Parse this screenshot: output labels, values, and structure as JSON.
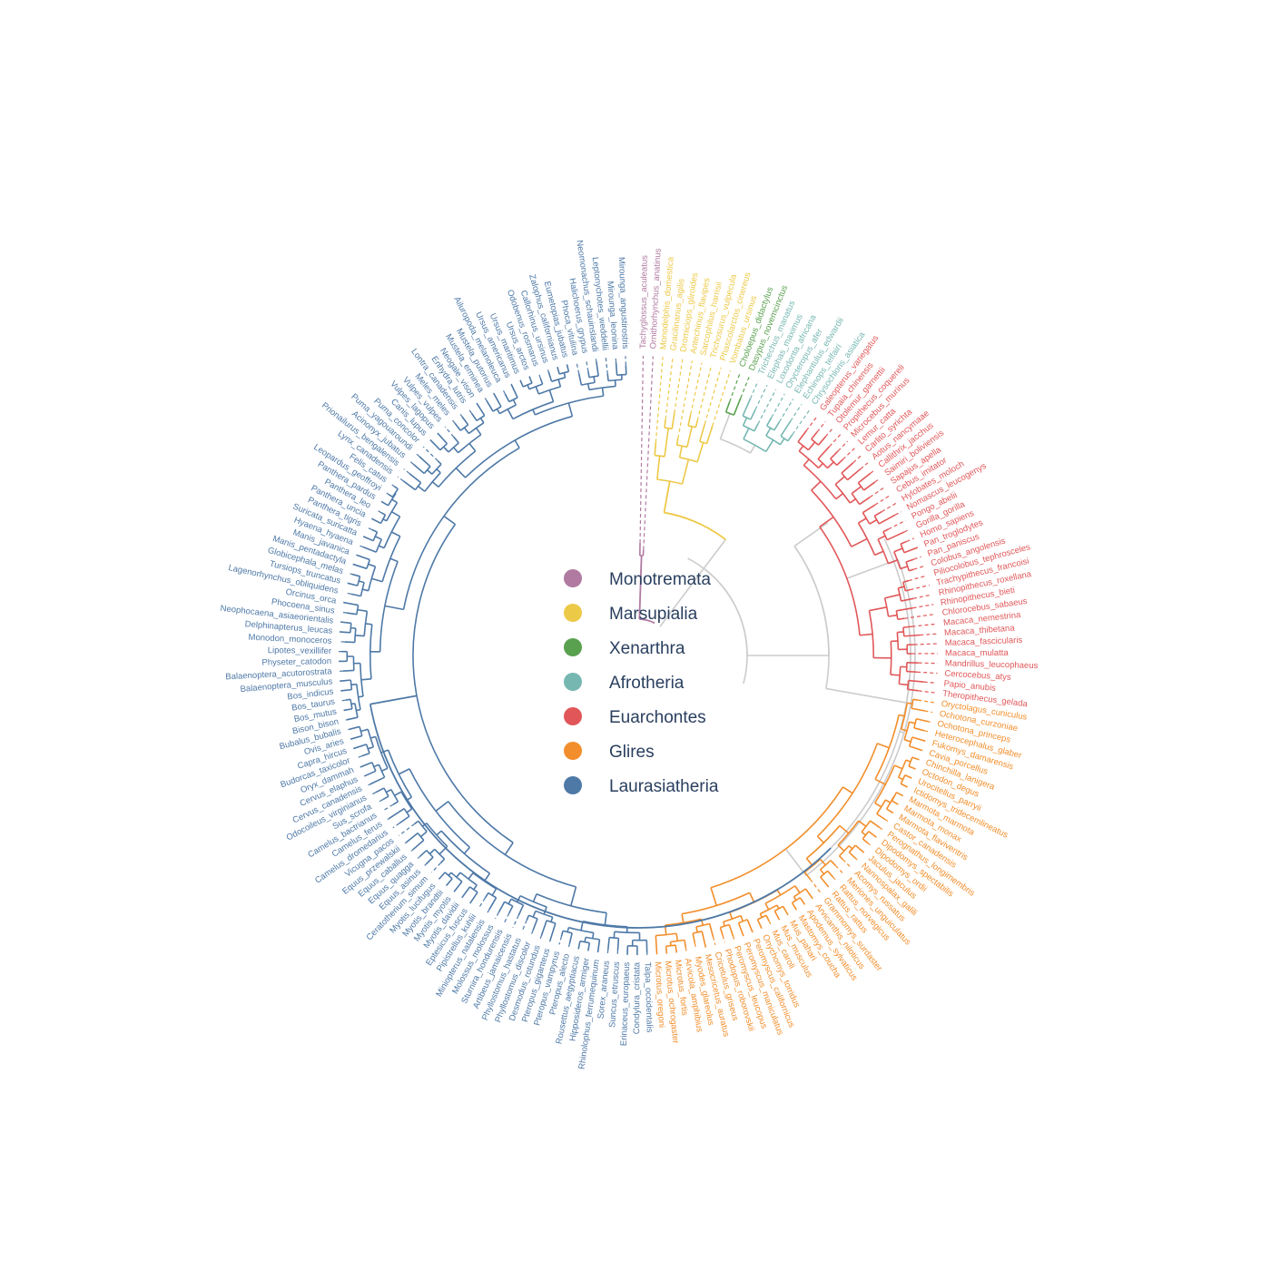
{
  "chart_data": {
    "type": "circular-phylogenetic-tree",
    "legend": [
      {
        "name": "Monotremata",
        "color": "#b07aa1"
      },
      {
        "name": "Marsupialia",
        "color": "#edc948"
      },
      {
        "name": "Xenarthra",
        "color": "#59a14f"
      },
      {
        "name": "Afrotheria",
        "color": "#76b7b2"
      },
      {
        "name": "Euarchontes",
        "color": "#e15759"
      },
      {
        "name": "Glires",
        "color": "#f28e2b"
      },
      {
        "name": "Laurasiatheria",
        "color": "#4e79a7"
      }
    ],
    "backbone_color": "#cccccc",
    "clades": [
      {
        "name": "Monotremata",
        "tips": [
          "Tachyglossus_aculeatus",
          "Ornithorhynchus_anatinus"
        ]
      },
      {
        "name": "Marsupialia",
        "tips": [
          "Monodelphis_domestica",
          "Gracilinanus_agilis",
          "Dromiciops_gliroides",
          "Antechinus_flavipes",
          "Sarcophilus_harrisii",
          "Trichosurus_vulpecula",
          "Phascolarctos_cinereus",
          "Vombatus_ursinus"
        ]
      },
      {
        "name": "Xenarthra",
        "tips": [
          "Choloepus_didactylus",
          "Dasypus_novemcinctus"
        ]
      },
      {
        "name": "Afrotheria",
        "tips": [
          "Trichechus_manatus",
          "Elephas_maximus",
          "Loxodonta_africana",
          "Orycteropus_afer",
          "Elephantulus_edwardii",
          "Echinops_telfairi",
          "Chrysochloris_asiatica"
        ]
      },
      {
        "name": "Euarchontes",
        "tips": [
          "Galeopterus_variegatus",
          "Tupaia_chinensis",
          "Otolemur_garnettii",
          "Propithecus_coquereli",
          "Microcebus_murinus",
          "Lemur_catta",
          "Carlito_syrichta",
          "Aotus_nancymaae",
          "Callithrix_jacchus",
          "Saimiri_boliviensis",
          "Sapajus_apella",
          "Cebus_imitator",
          "Hylobates_moloch",
          "Nomascus_leucogenys",
          "Pongo_abelii",
          "Gorilla_gorilla",
          "Homo_sapiens",
          "Pan_troglodytes",
          "Pan_paniscus",
          "Colobus_angolensis",
          "Piliocolobus_tephrosceles",
          "Trachypithecus_francoisi",
          "Rhinopithecus_roxellana",
          "Rhinopithecus_bieti",
          "Chlorocebus_sabaeus",
          "Macaca_nemestrina",
          "Macaca_thibetana",
          "Macaca_fascicularis",
          "Macaca_mulatta",
          "Mandrillus_leucophaeus",
          "Cercocebus_atys",
          "Papio_anubis",
          "Theropithecus_gelada"
        ]
      },
      {
        "name": "Glires",
        "tips": [
          "Oryctolagus_cuniculus",
          "Ochotona_curzoniae",
          "Ochotona_princeps",
          "Heterocephalus_glaber",
          "Fukomys_damarensis",
          "Cavia_porcellus",
          "Chinchilla_lanigera",
          "Octodon_degus",
          "Urocitellus_parryii",
          "Ictidomys_tridecemlineatus",
          "Marmota_marmota",
          "Marmota_monax",
          "Marmota_flaviventris",
          "Castor_canadensis",
          "Perognathus_longimembris",
          "Dipodomys_spectabilis",
          "Dipodomys_ordii",
          "Jaculus_jaculus",
          "Nannospalax_galili",
          "Acomys_russatus",
          "Meriones_unguiculatus",
          "Rattus_norvegicus",
          "Rattus_rattus",
          "Grammomys_surdaster",
          "Arvicanthis_niloticus",
          "Apodemus_sylvaticus",
          "Mastomys_coucha",
          "Mus_pahari",
          "Mus_musculus",
          "Mus_caroli",
          "Onychomys_torridus",
          "Peromyscus_californicus",
          "Peromyscus_maniculatus",
          "Peromyscus_leucopus",
          "Phodopus_roborovskii",
          "Cricetulus_griseus",
          "Mesocricetus_auratus",
          "Myodes_glareolus",
          "Arvicola_amphibius",
          "Microtus_fortis",
          "Microtus_ochrogaster",
          "Microtus_oregoni"
        ]
      },
      {
        "name": "Laurasiatheria",
        "tips": [
          "Talpa_occidentalis",
          "Condylura_cristata",
          "Erinaceus_europaeus",
          "Suncus_etruscus",
          "Sorex_araneus",
          "Rhinolophus_ferrumequinum",
          "Hipposideros_armiger",
          "Rousettus_aegyptiacus",
          "Pteropus_alecto",
          "Pteropus_vampyrus",
          "Pteropus_giganteus",
          "Desmodus_rotundus",
          "Phyllostomus_discolor",
          "Phyllostomus_hastatus",
          "Artibeus_jamaicensis",
          "Sturnira_hondurensis",
          "Molossus_molossus",
          "Miniopterus_natalensis",
          "Pipistrellus_kuhlii",
          "Eptesicus_fuscus",
          "Myotis_davidii",
          "Myotis_myotis",
          "Myotis_brandtii",
          "Myotis_lucifugus",
          "Ceratotherium_simum",
          "Equus_asinus",
          "Equus_quagga",
          "Equus_caballus",
          "Equus_przewalskii",
          "Vicugna_pacos",
          "Camelus_dromedarius",
          "Camelus_ferus",
          "Camelus_bactrianus",
          "Sus_scrofa",
          "Odocoileus_virginianus",
          "Cervus_canadensis",
          "Cervus_elaphus",
          "Oryx_dammah",
          "Budorcas_taxicolor",
          "Capra_hircus",
          "Ovis_aries",
          "Bubalus_bubalis",
          "Bison_bison",
          "Bos_mutus",
          "Bos_taurus",
          "Bos_indicus",
          "Balaenoptera_musculus",
          "Balaenoptera_acutorostrata",
          "Physeter_catodon",
          "Lipotes_vexillifer",
          "Monodon_monoceros",
          "Delphinapterus_leucas",
          "Neophocaena_asiaeorientalis",
          "Phocoena_sinus",
          "Orcinus_orca",
          "Lagenorhynchus_obliquidens",
          "Tursiops_truncatus",
          "Globicephala_melas",
          "Manis_pentadactyla",
          "Manis_javanica",
          "Hyaena_hyaena",
          "Suricata_suricatta",
          "Panthera_tigris",
          "Panthera_uncia",
          "Panthera_leo",
          "Panthera_pardus",
          "Leopardus_geoffroyi",
          "Felis_catus",
          "Lynx_canadensis",
          "Prionailurus_bengalensis",
          "Acinonyx_jubatus",
          "Puma_yagouaroundi",
          "Puma_concolor",
          "Canis_lupus",
          "Vulpes_lagopus",
          "Vulpes_vulpes",
          "Meles_meles",
          "Lontra_canadensis",
          "Enhydra_lutris",
          "Neogale_vison",
          "Mustela_erminea",
          "Mustela_putorius",
          "Ailuropoda_melanoleuca",
          "Ursus_americanus",
          "Ursus_maritimus",
          "Ursus_arctos",
          "Odobenus_rosmarus",
          "Callorhinus_ursinus",
          "Zalophus_californianus",
          "Eumetopias_jubatus",
          "Phoca_vitulina",
          "Halichoerus_grypus",
          "Neomonachus_schauinslandi",
          "Leptonychotes_weddellii",
          "Mirounga_leonina",
          "Mirounga_angustirostris"
        ]
      }
    ]
  }
}
